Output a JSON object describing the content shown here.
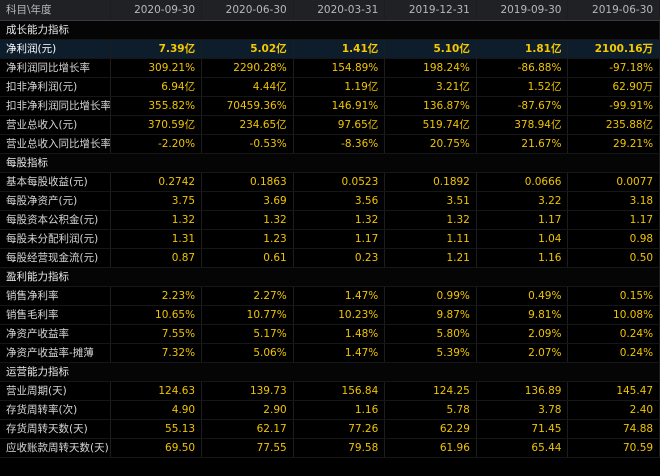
{
  "header": {
    "first": "科目\\年度",
    "periods": [
      "2020-09-30",
      "2020-06-30",
      "2020-03-31",
      "2019-12-31",
      "2019-09-30",
      "2019-06-30"
    ]
  },
  "sections": [
    {
      "title": "成长能力指标",
      "rows": [
        {
          "label": "净利润(元)",
          "values": [
            "7.39亿",
            "5.02亿",
            "1.41亿",
            "5.10亿",
            "1.81亿",
            "2100.16万"
          ],
          "highlight": true
        },
        {
          "label": "净利润同比增长率",
          "values": [
            "309.21%",
            "2290.28%",
            "154.89%",
            "198.24%",
            "-86.88%",
            "-97.18%"
          ]
        },
        {
          "label": "扣非净利润(元)",
          "values": [
            "6.94亿",
            "4.44亿",
            "1.19亿",
            "3.21亿",
            "1.52亿",
            "62.90万"
          ]
        },
        {
          "label": "扣非净利润同比增长率",
          "values": [
            "355.82%",
            "70459.36%",
            "146.91%",
            "136.87%",
            "-87.67%",
            "-99.91%"
          ]
        },
        {
          "label": "营业总收入(元)",
          "values": [
            "370.59亿",
            "234.65亿",
            "97.65亿",
            "519.74亿",
            "378.94亿",
            "235.88亿"
          ]
        },
        {
          "label": "营业总收入同比增长率",
          "values": [
            "-2.20%",
            "-0.53%",
            "-8.36%",
            "20.75%",
            "21.67%",
            "29.21%"
          ]
        }
      ]
    },
    {
      "title": "每股指标",
      "rows": [
        {
          "label": "基本每股收益(元)",
          "values": [
            "0.2742",
            "0.1863",
            "0.0523",
            "0.1892",
            "0.0666",
            "0.0077"
          ]
        },
        {
          "label": "每股净资产(元)",
          "values": [
            "3.75",
            "3.69",
            "3.56",
            "3.51",
            "3.22",
            "3.18"
          ]
        },
        {
          "label": "每股资本公积金(元)",
          "values": [
            "1.32",
            "1.32",
            "1.32",
            "1.32",
            "1.17",
            "1.17"
          ]
        },
        {
          "label": "每股未分配利润(元)",
          "values": [
            "1.31",
            "1.23",
            "1.17",
            "1.11",
            "1.04",
            "0.98"
          ]
        },
        {
          "label": "每股经营现金流(元)",
          "values": [
            "0.87",
            "0.61",
            "0.23",
            "1.21",
            "1.16",
            "0.50"
          ]
        }
      ]
    },
    {
      "title": "盈利能力指标",
      "rows": [
        {
          "label": "销售净利率",
          "values": [
            "2.23%",
            "2.27%",
            "1.47%",
            "0.99%",
            "0.49%",
            "0.15%"
          ]
        },
        {
          "label": "销售毛利率",
          "values": [
            "10.65%",
            "10.77%",
            "10.23%",
            "9.87%",
            "9.81%",
            "10.08%"
          ]
        },
        {
          "label": "净资产收益率",
          "values": [
            "7.55%",
            "5.17%",
            "1.48%",
            "5.80%",
            "2.09%",
            "0.24%"
          ]
        },
        {
          "label": "净资产收益率-摊薄",
          "values": [
            "7.32%",
            "5.06%",
            "1.47%",
            "5.39%",
            "2.07%",
            "0.24%"
          ]
        }
      ]
    },
    {
      "title": "运营能力指标",
      "rows": [
        {
          "label": "营业周期(天)",
          "values": [
            "124.63",
            "139.73",
            "156.84",
            "124.25",
            "136.89",
            "145.47"
          ]
        },
        {
          "label": "存货周转率(次)",
          "values": [
            "4.90",
            "2.90",
            "1.16",
            "5.78",
            "3.78",
            "2.40"
          ]
        },
        {
          "label": "存货周转天数(天)",
          "values": [
            "55.13",
            "62.17",
            "77.26",
            "62.29",
            "71.45",
            "74.88"
          ]
        },
        {
          "label": "应收账款周转天数(天)",
          "values": [
            "69.50",
            "77.55",
            "79.58",
            "61.96",
            "65.44",
            "70.59"
          ]
        }
      ]
    }
  ]
}
